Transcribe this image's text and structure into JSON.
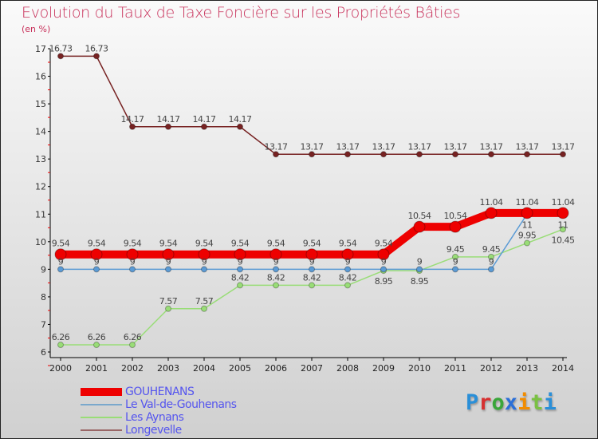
{
  "chart_data": {
    "type": "line",
    "title": "Evolution du Taux de Taxe Foncière sur les Propriétés Bâties",
    "subtitle": "(en %)",
    "x": [
      "2000",
      "2001",
      "2002",
      "2003",
      "2004",
      "2005",
      "2006",
      "2007",
      "2008",
      "2009",
      "2010",
      "2011",
      "2012",
      "2013",
      "2014"
    ],
    "ylim": [
      6,
      17
    ],
    "yticks": [
      "6",
      "7",
      "8",
      "9",
      "10",
      "11",
      "12",
      "13",
      "14",
      "15",
      "16",
      "17"
    ],
    "series": [
      {
        "name": "GOUHENANS",
        "color": "#ee0000",
        "values": [
          9.54,
          9.54,
          9.54,
          9.54,
          9.54,
          9.54,
          9.54,
          9.54,
          9.54,
          9.54,
          10.54,
          10.54,
          11.04,
          11.04,
          11.04
        ]
      },
      {
        "name": "Le Val-de-Gouhenans",
        "color": "#5b9bd5",
        "values": [
          9,
          9,
          9,
          9,
          9,
          9,
          9,
          9,
          9,
          9,
          9,
          9,
          9,
          11,
          11
        ]
      },
      {
        "name": "Les Aynans",
        "color": "#99dd77",
        "values": [
          6.26,
          6.26,
          6.26,
          7.57,
          7.57,
          8.42,
          8.42,
          8.42,
          8.42,
          8.95,
          8.95,
          9.45,
          9.45,
          9.95,
          10.45
        ]
      },
      {
        "name": "Longevelle",
        "color": "#772222",
        "values": [
          16.73,
          16.73,
          14.17,
          14.17,
          14.17,
          14.17,
          13.17,
          13.17,
          13.17,
          13.17,
          13.17,
          13.17,
          13.17,
          13.17,
          13.17
        ]
      }
    ],
    "legend": "bottom-left"
  },
  "logo": "Proxiti"
}
